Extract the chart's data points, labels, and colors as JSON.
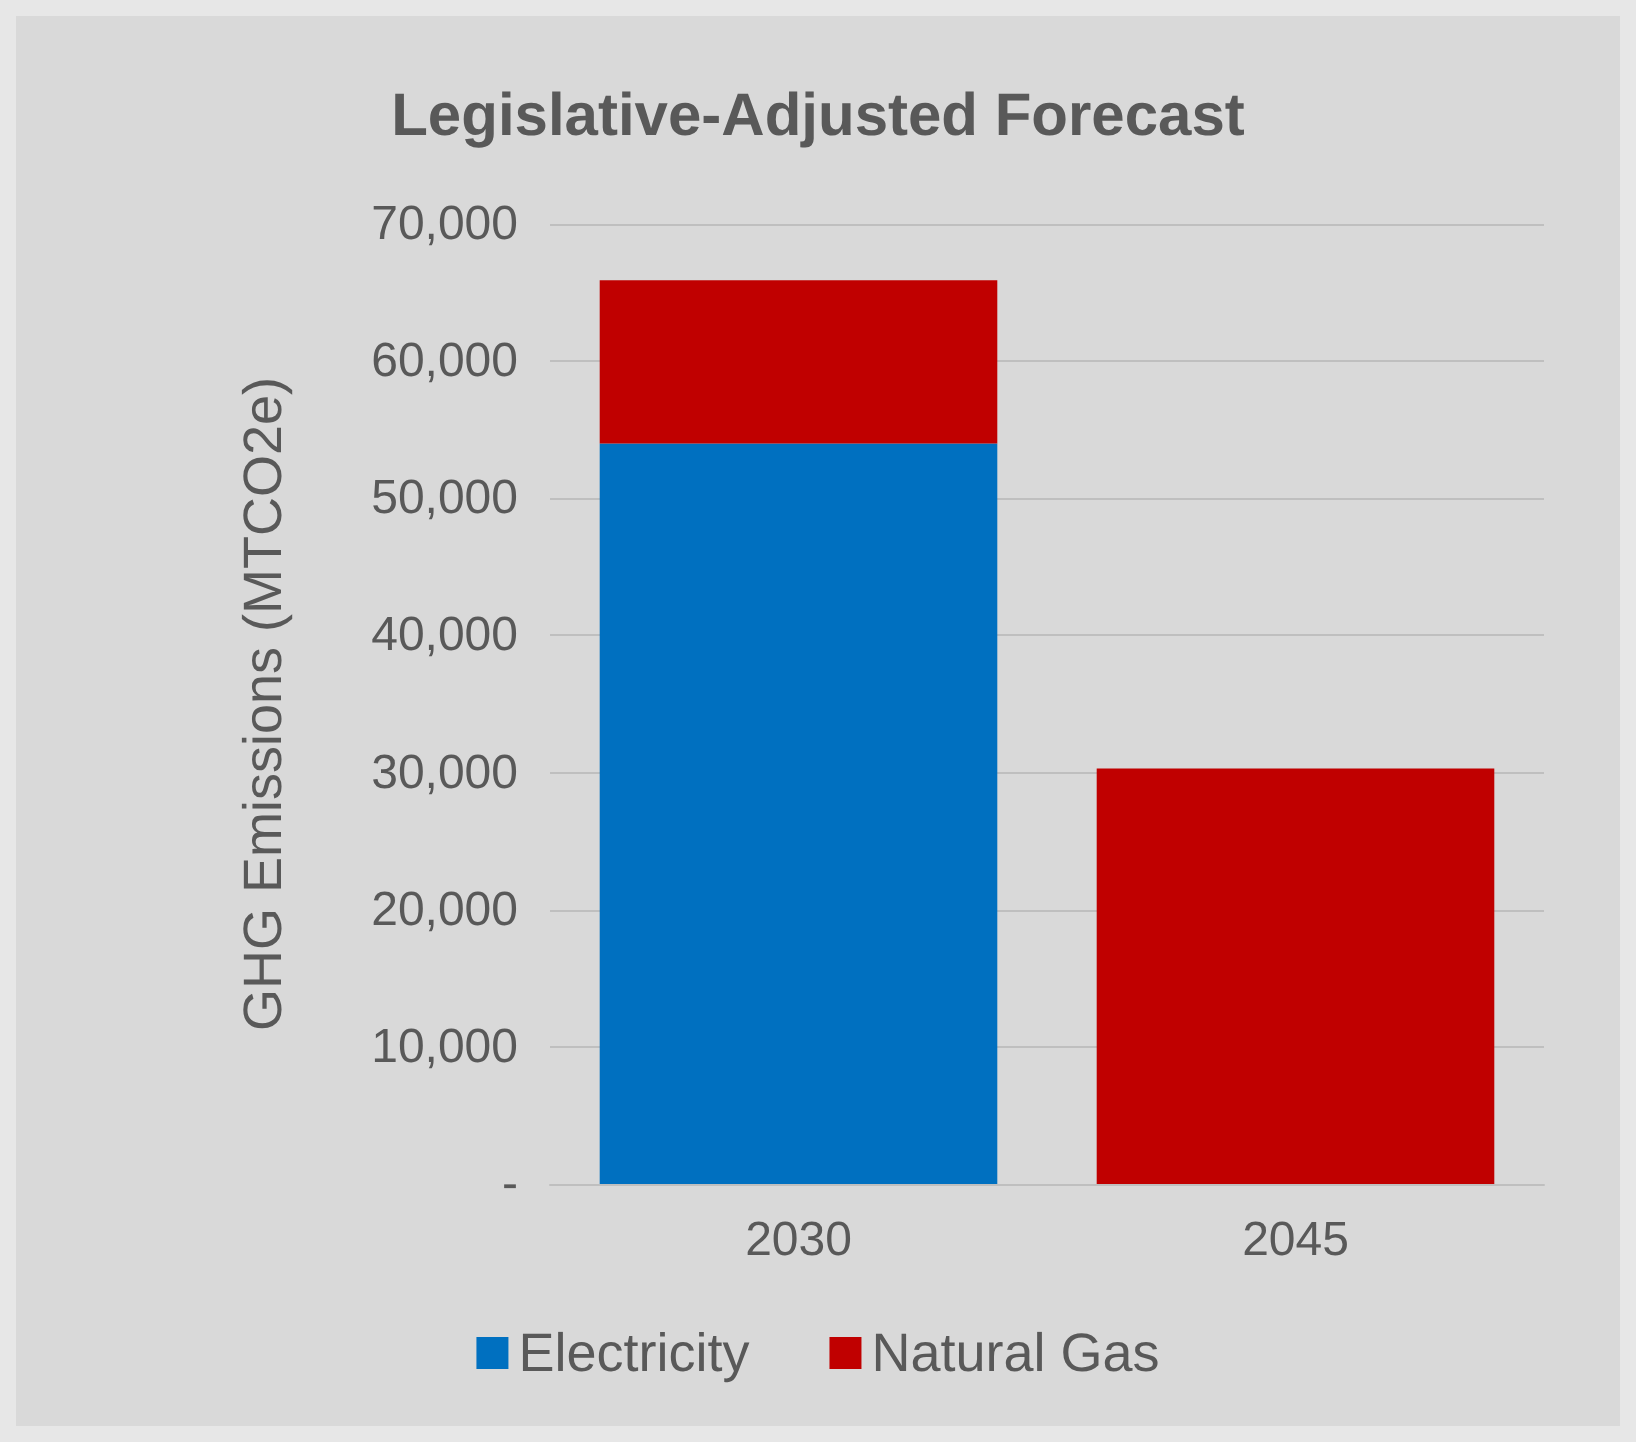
{
  "chart_data": {
    "type": "bar",
    "title": "Legislative-Adjusted Forecast",
    "ylabel": "GHG Emissions (MTCO2e)",
    "categories": [
      "2030",
      "2045"
    ],
    "series": [
      {
        "name": "Electricity",
        "color": "#0070c0",
        "values": [
          54000,
          0
        ]
      },
      {
        "name": "Natural Gas",
        "color": "#c00000",
        "values": [
          11900,
          30300
        ]
      }
    ],
    "stacked": true,
    "ylim": [
      0,
      70000
    ],
    "yticks": [
      {
        "value": 0,
        "label": "-"
      },
      {
        "value": 10000,
        "label": "10,000"
      },
      {
        "value": 20000,
        "label": "20,000"
      },
      {
        "value": 30000,
        "label": "30,000"
      },
      {
        "value": 40000,
        "label": "40,000"
      },
      {
        "value": 50000,
        "label": "50,000"
      },
      {
        "value": 60000,
        "label": "60,000"
      },
      {
        "value": 70000,
        "label": "70,000"
      }
    ],
    "grid": "y",
    "legend": "bottom"
  }
}
